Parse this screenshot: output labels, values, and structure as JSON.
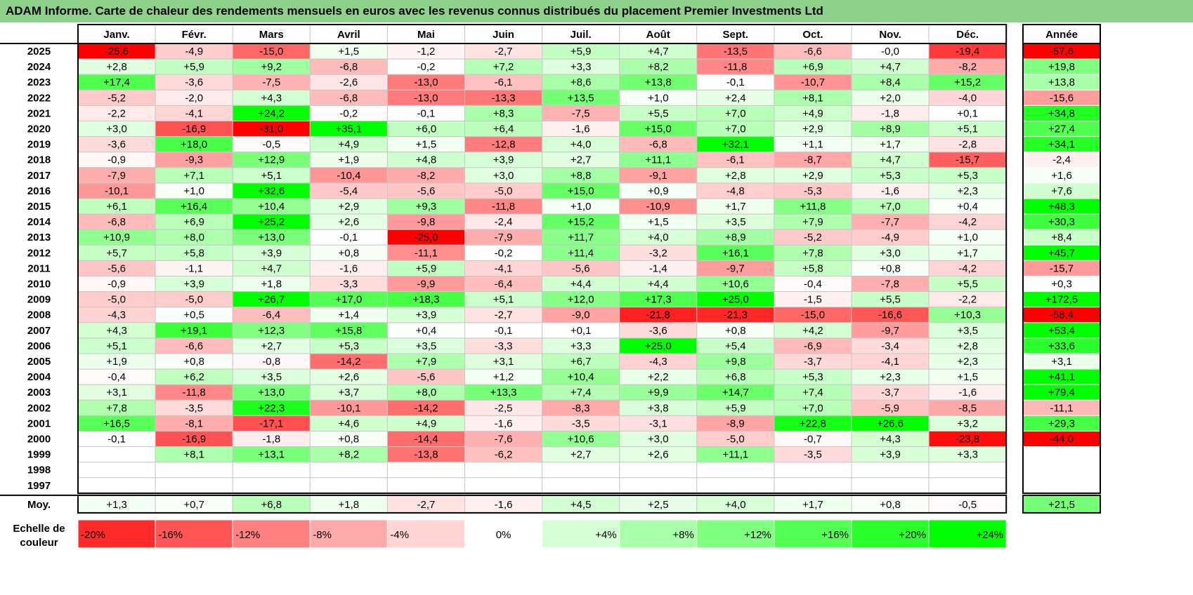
{
  "chart_data": {
    "type": "heatmap",
    "title": "ADAM Informe. Carte de chaleur des rendements mensuels en euros avec les revenus connus distribués du placement Premier Investments Ltd",
    "columns": [
      "Janv.",
      "Févr.",
      "Mars",
      "Avril",
      "Mai",
      "Juin",
      "Juil.",
      "Août",
      "Sept.",
      "Oct.",
      "Nov.",
      "Déc."
    ],
    "year_header": "Année",
    "rows": [
      {
        "year": "2025",
        "values": [
          "-25,6",
          "-4,9",
          "-15,0",
          "+1,5",
          "-1,2",
          "-2,7",
          "+5,9",
          "+4,7",
          "-13,5",
          "-6,6",
          "-0,0",
          "-19,4"
        ],
        "annual": "-57,6"
      },
      {
        "year": "2024",
        "values": [
          "+2,8",
          "+5,9",
          "+9,2",
          "-6,8",
          "-0,2",
          "+7,2",
          "+3,3",
          "+8,2",
          "-11,8",
          "+6,9",
          "+4,7",
          "-8,2"
        ],
        "annual": "+19,8"
      },
      {
        "year": "2023",
        "values": [
          "+17,4",
          "-3,6",
          "-7,5",
          "-2,6",
          "-13,0",
          "-6,1",
          "+8,6",
          "+13,8",
          "-0,1",
          "-10,7",
          "+8,4",
          "+15,2"
        ],
        "annual": "+13,8"
      },
      {
        "year": "2022",
        "values": [
          "-5,2",
          "-2,0",
          "+4,3",
          "-6,8",
          "-13,0",
          "-13,3",
          "+13,5",
          "+1,0",
          "+2,4",
          "+8,1",
          "+2,0",
          "-4,0"
        ],
        "annual": "-15,6"
      },
      {
        "year": "2021",
        "values": [
          "-2,2",
          "-4,1",
          "+24,2",
          "-0,2",
          "-0,1",
          "+8,3",
          "-7,5",
          "+5,5",
          "+7,0",
          "+4,9",
          "-1,8",
          "+0,1"
        ],
        "annual": "+34,8"
      },
      {
        "year": "2020",
        "values": [
          "+3,0",
          "-16,9",
          "-31,0",
          "+35,1",
          "+6,0",
          "+6,4",
          "-1,6",
          "+15,0",
          "+7,0",
          "+2,9",
          "+8,9",
          "+5,1"
        ],
        "annual": "+27,4"
      },
      {
        "year": "2019",
        "values": [
          "-3,6",
          "+18,0",
          "-0,5",
          "+4,9",
          "+1,5",
          "-12,8",
          "+4,0",
          "-6,8",
          "+32,1",
          "+1,1",
          "+1,7",
          "-2,8"
        ],
        "annual": "+34,1"
      },
      {
        "year": "2018",
        "values": [
          "-0,9",
          "-9,3",
          "+12,9",
          "+1,9",
          "+4,8",
          "+3,9",
          "+2,7",
          "+11,1",
          "-6,1",
          "-8,7",
          "+4,7",
          "-15,7"
        ],
        "annual": "-2,4"
      },
      {
        "year": "2017",
        "values": [
          "-7,9",
          "+7,1",
          "+5,1",
          "-10,4",
          "-8,2",
          "+3,0",
          "+8,8",
          "-9,1",
          "+2,8",
          "+2,9",
          "+5,3",
          "+5,3"
        ],
        "annual": "+1,6"
      },
      {
        "year": "2016",
        "values": [
          "-10,1",
          "+1,0",
          "+32,6",
          "-5,4",
          "-5,6",
          "-5,0",
          "+15,0",
          "+0,9",
          "-4,8",
          "-5,3",
          "-1,6",
          "+2,3"
        ],
        "annual": "+7,6"
      },
      {
        "year": "2015",
        "values": [
          "+6,1",
          "+16,4",
          "+10,4",
          "+2,9",
          "+9,3",
          "-11,8",
          "+1,0",
          "-10,9",
          "+1,7",
          "+11,8",
          "+7,0",
          "+0,4"
        ],
        "annual": "+48,3"
      },
      {
        "year": "2014",
        "values": [
          "-6,8",
          "+6,9",
          "+25,2",
          "+2,6",
          "-9,8",
          "-2,4",
          "+15,2",
          "+1,5",
          "+3,5",
          "+7,9",
          "-7,7",
          "-4,2"
        ],
        "annual": "+30,3"
      },
      {
        "year": "2013",
        "values": [
          "+10,9",
          "+8,0",
          "+13,0",
          "-0,1",
          "-25,0",
          "-7,9",
          "+11,7",
          "+4,0",
          "+8,9",
          "-5,2",
          "-4,9",
          "+1,0"
        ],
        "annual": "+8,4"
      },
      {
        "year": "2012",
        "values": [
          "+5,7",
          "+5,8",
          "+3,9",
          "+0,8",
          "-11,1",
          "-0,2",
          "+11,4",
          "-3,2",
          "+16,1",
          "+7,8",
          "+3,0",
          "+1,7"
        ],
        "annual": "+45,7"
      },
      {
        "year": "2011",
        "values": [
          "-5,6",
          "-1,1",
          "+4,7",
          "-1,6",
          "+5,9",
          "-4,1",
          "-5,6",
          "-1,4",
          "-9,7",
          "+5,8",
          "+0,8",
          "-4,2"
        ],
        "annual": "-15,7"
      },
      {
        "year": "2010",
        "values": [
          "-0,9",
          "+3,9",
          "+1,8",
          "-3,3",
          "-9,9",
          "-6,4",
          "+4,4",
          "+4,4",
          "+10,6",
          "-0,4",
          "-7,8",
          "+5,5"
        ],
        "annual": "+0,3"
      },
      {
        "year": "2009",
        "values": [
          "-5,0",
          "-5,0",
          "+26,7",
          "+17,0",
          "+18,3",
          "+5,1",
          "+12,0",
          "+17,3",
          "+25,0",
          "-1,5",
          "+5,5",
          "-2,2"
        ],
        "annual": "+172,5"
      },
      {
        "year": "2008",
        "values": [
          "-4,3",
          "+0,5",
          "-6,4",
          "+1,4",
          "+3,9",
          "-2,7",
          "-9,0",
          "-21,8",
          "-21,3",
          "-15,0",
          "-16,6",
          "+10,3"
        ],
        "annual": "-58,4"
      },
      {
        "year": "2007",
        "values": [
          "+4,3",
          "+19,1",
          "+12,3",
          "+15,8",
          "+0,4",
          "-0,1",
          "+0,1",
          "-3,6",
          "+0,8",
          "+4,2",
          "-9,7",
          "+3,5"
        ],
        "annual": "+53,4"
      },
      {
        "year": "2006",
        "values": [
          "+5,1",
          "-6,6",
          "+2,7",
          "+5,3",
          "+3,5",
          "-3,3",
          "+3,3",
          "+25,0",
          "+5,4",
          "-6,9",
          "-3,4",
          "+2,8"
        ],
        "annual": "+33,6"
      },
      {
        "year": "2005",
        "values": [
          "+1,9",
          "+0,8",
          "-0,8",
          "-14,2",
          "+7,9",
          "+3,1",
          "+6,7",
          "-4,3",
          "+9,8",
          "-3,7",
          "-4,1",
          "+2,3"
        ],
        "annual": "+3,1"
      },
      {
        "year": "2004",
        "values": [
          "-0,4",
          "+6,2",
          "+3,5",
          "+2,6",
          "-5,6",
          "+1,2",
          "+10,4",
          "+2,2",
          "+6,8",
          "+5,3",
          "+2,3",
          "+1,5"
        ],
        "annual": "+41,1"
      },
      {
        "year": "2003",
        "values": [
          "+3,1",
          "-11,8",
          "+13,0",
          "+3,7",
          "+8,0",
          "+13,3",
          "+7,4",
          "+9,9",
          "+14,7",
          "+7,4",
          "-3,7",
          "-1,6"
        ],
        "annual": "+79,4"
      },
      {
        "year": "2002",
        "values": [
          "+7,8",
          "-3,5",
          "+22,3",
          "-10,1",
          "-14,2",
          "-2,5",
          "-8,3",
          "+3,8",
          "+5,9",
          "+7,0",
          "-5,9",
          "-8,5"
        ],
        "annual": "-11,1"
      },
      {
        "year": "2001",
        "values": [
          "+16,5",
          "-8,1",
          "-17,1",
          "+4,6",
          "+4,9",
          "-1,6",
          "-3,5",
          "-3,1",
          "-8,9",
          "+22,8",
          "+26,6",
          "+3,2"
        ],
        "annual": "+29,3"
      },
      {
        "year": "2000",
        "values": [
          "-0,1",
          "-16,9",
          "-1,8",
          "+0,8",
          "-14,4",
          "-7,6",
          "+10,6",
          "+3,0",
          "-5,0",
          "-0,7",
          "+4,3",
          "-23,8"
        ],
        "annual": "-44,0"
      },
      {
        "year": "1999",
        "values": [
          "",
          "+8,1",
          "+13,1",
          "+8,2",
          "-13,8",
          "-6,2",
          "+2,7",
          "+2,6",
          "+11,1",
          "-3,5",
          "+3,9",
          "+3,3"
        ],
        "annual": ""
      },
      {
        "year": "1998",
        "values": [
          "",
          "",
          "",
          "",
          "",
          "",
          "",
          "",
          "",
          "",
          "",
          ""
        ],
        "annual": ""
      },
      {
        "year": "1997",
        "values": [
          "",
          "",
          "",
          "",
          "",
          "",
          "",
          "",
          "",
          "",
          "",
          ""
        ],
        "annual": ""
      }
    ],
    "average": {
      "label": "Moy.",
      "values": [
        "+1,3",
        "+0,7",
        "+6,8",
        "+1,8",
        "-2,7",
        "-1,6",
        "+4,5",
        "+2,5",
        "+4,0",
        "+1,7",
        "+0,8",
        "-0,5"
      ],
      "annual": "+21,5"
    },
    "scale": {
      "label_line1": "Echelle de",
      "label_line2": "couleur",
      "steps": [
        "-20%",
        "-16%",
        "-12%",
        "-8%",
        "-4%",
        "0%",
        "+4%",
        "+8%",
        "+12%",
        "+16%",
        "+20%",
        "+24%"
      ]
    },
    "colors": {
      "negative": "#ff0000",
      "positive": "#00ff00",
      "neutral": "#ffffff",
      "title_bar": "#8ed18b"
    }
  }
}
